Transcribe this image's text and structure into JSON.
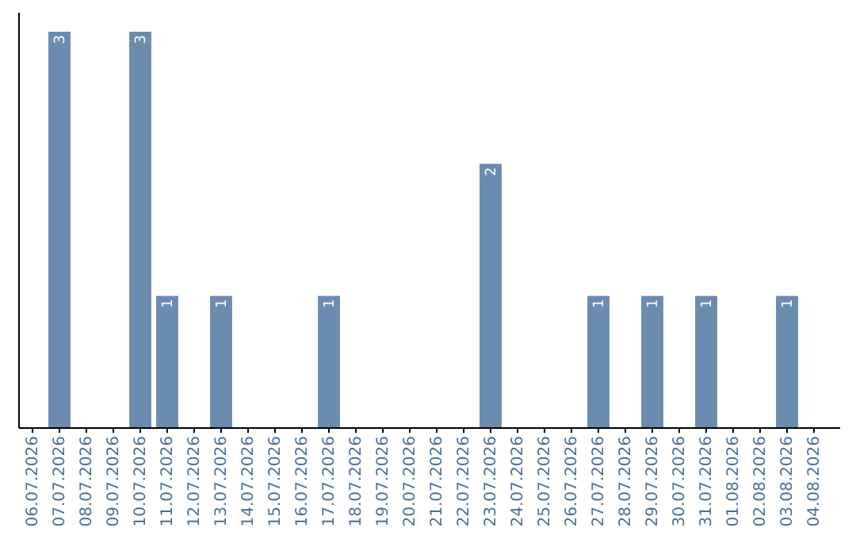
{
  "chart_data": {
    "type": "bar",
    "categories": [
      "06.07.2026",
      "07.07.2026",
      "08.07.2026",
      "09.07.2026",
      "10.07.2026",
      "11.07.2026",
      "12.07.2026",
      "13.07.2026",
      "14.07.2026",
      "15.07.2026",
      "16.07.2026",
      "17.07.2026",
      "18.07.2026",
      "19.07.2026",
      "20.07.2026",
      "21.07.2026",
      "22.07.2026",
      "23.07.2026",
      "24.07.2026",
      "25.07.2026",
      "26.07.2026",
      "27.07.2026",
      "28.07.2026",
      "29.07.2026",
      "30.07.2026",
      "31.07.2026",
      "01.08.2026",
      "02.08.2026",
      "03.08.2026",
      "04.08.2026"
    ],
    "values": [
      0,
      3,
      0,
      0,
      3,
      1,
      0,
      1,
      0,
      0,
      0,
      1,
      0,
      0,
      0,
      0,
      0,
      2,
      0,
      0,
      0,
      1,
      0,
      1,
      0,
      1,
      0,
      0,
      1,
      0
    ],
    "value_labels": [
      null,
      "3",
      null,
      null,
      "3",
      "1",
      null,
      "1",
      null,
      null,
      null,
      "1",
      null,
      null,
      null,
      null,
      null,
      "2",
      null,
      null,
      null,
      "1",
      null,
      "1",
      null,
      "1",
      null,
      null,
      "1",
      null
    ],
    "color": "#6a8caf"
  }
}
